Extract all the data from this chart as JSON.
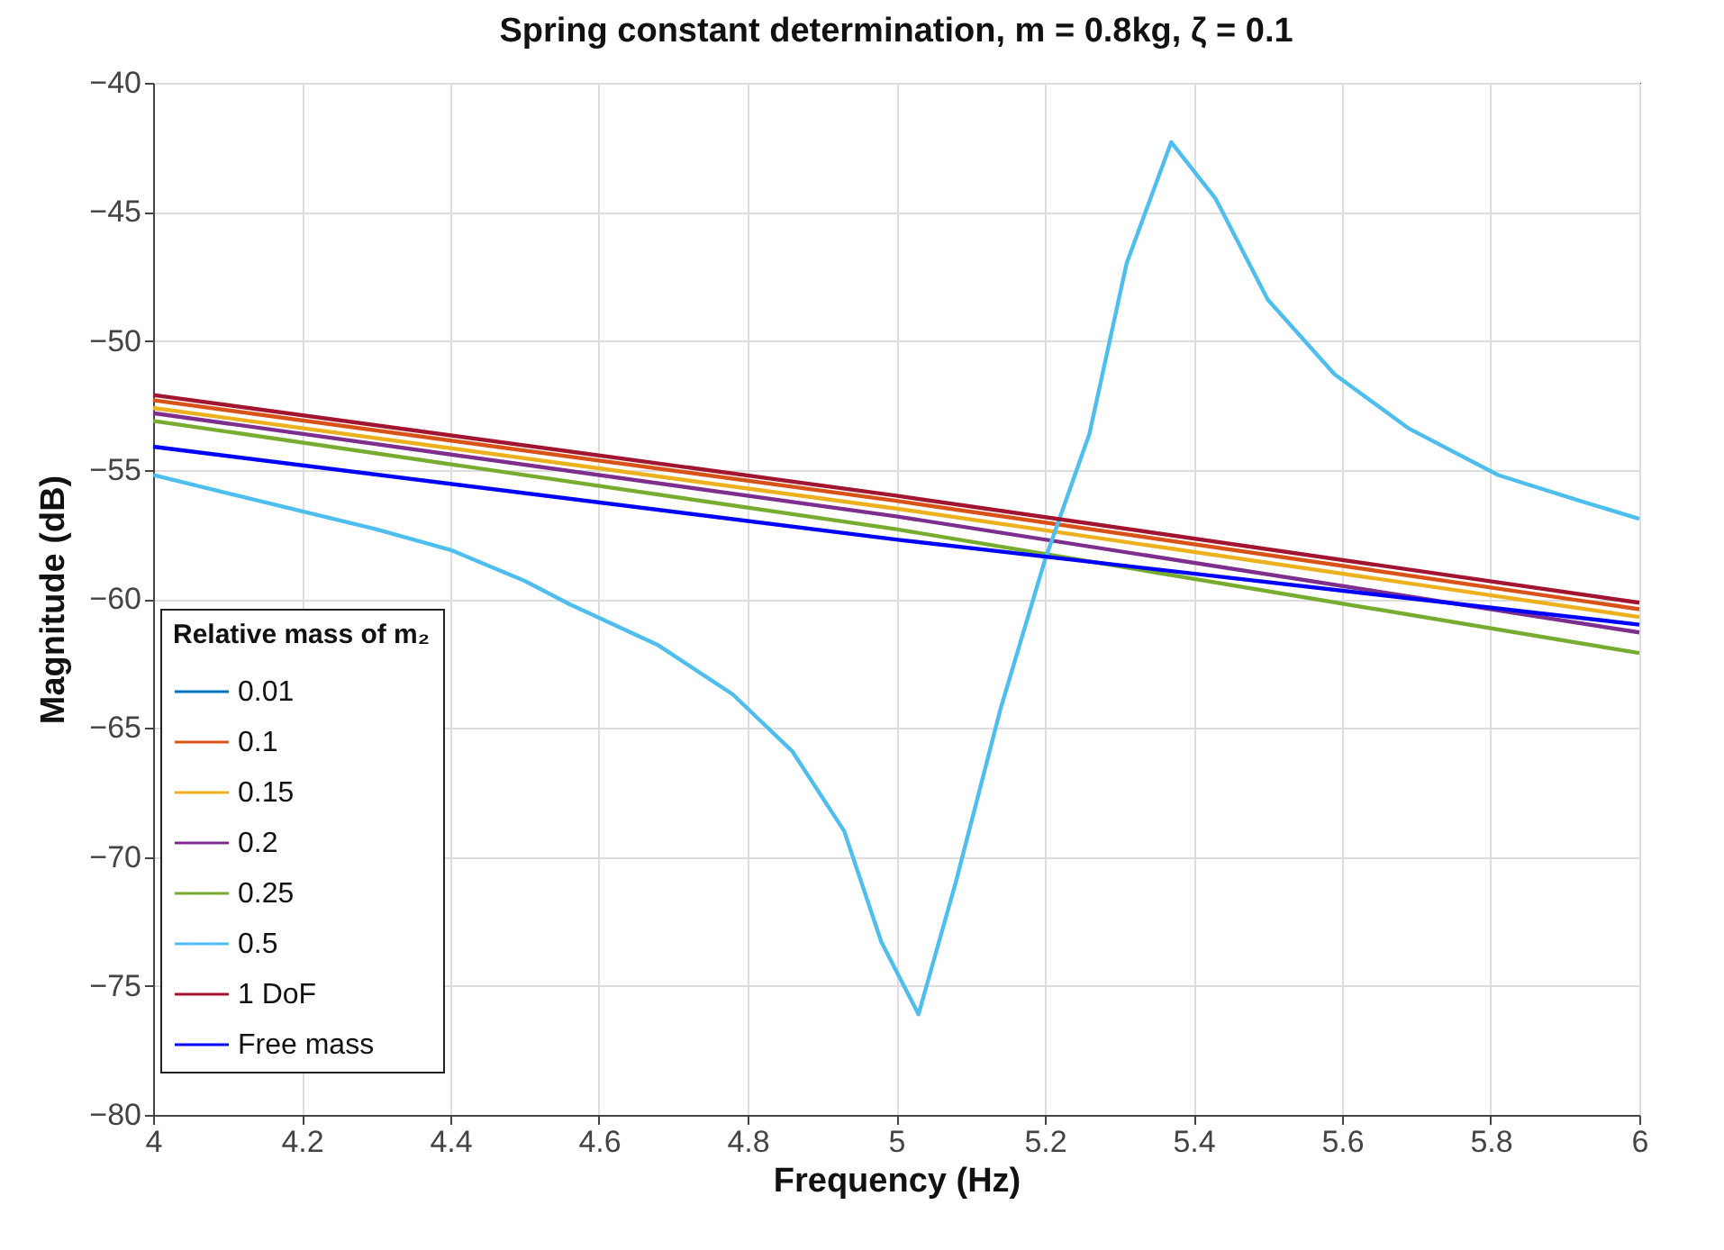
{
  "chart_data": {
    "type": "line",
    "title": "Spring constant determination, m = 0.8kg, ζ = 0.1",
    "xlabel": "Frequency  (Hz)",
    "ylabel": "Magnitude (dB)",
    "legend_title": "Relative mass of m₂",
    "xlim": [
      4,
      6
    ],
    "xticks": [
      4,
      4.2,
      4.4,
      4.6,
      4.8,
      5,
      5.2,
      5.4,
      5.6,
      5.8,
      6
    ],
    "ylim": [
      -80,
      -40
    ],
    "yticks": [
      -80,
      -75,
      -70,
      -65,
      -60,
      -55,
      -50,
      -45,
      -40
    ],
    "grid": true,
    "legend": "left",
    "marker": "none",
    "line_style": "solid",
    "series": [
      {
        "name": "0.01",
        "color": "#0072bd"
      },
      {
        "name": "0.1",
        "color": "#d95319",
        "x": [
          4,
          5,
          6
        ],
        "values": [
          -52.3,
          -56.2,
          -60.4
        ]
      },
      {
        "name": "0.15",
        "color": "#edb120",
        "x": [
          4,
          5,
          6
        ],
        "values": [
          -52.6,
          -56.5,
          -60.7
        ]
      },
      {
        "name": "0.2",
        "color": "#7e2f8e",
        "x": [
          4,
          5,
          6
        ],
        "values": [
          -52.8,
          -56.8,
          -61.3
        ]
      },
      {
        "name": "0.25",
        "color": "#77ac30",
        "x": [
          4,
          5,
          6
        ],
        "values": [
          -53.1,
          -57.3,
          -62.1
        ]
      },
      {
        "name": "0.5",
        "color": "#4dbeee",
        "x": [
          4,
          4.1,
          4.2,
          4.3,
          4.4,
          4.5,
          4.56,
          4.68,
          4.78,
          4.86,
          4.93,
          4.98,
          5.03,
          5.08,
          5.14,
          5.2,
          5.26,
          5.31,
          5.37,
          5.43,
          5.5,
          5.59,
          5.69,
          5.81,
          5.92,
          6
        ],
        "values": [
          -55.2,
          -55.9,
          -56.6,
          -57.3,
          -58.1,
          -59.3,
          -60.2,
          -61.8,
          -63.7,
          -65.9,
          -69.0,
          -73.3,
          -76.1,
          -71.0,
          -64.3,
          -58.5,
          -53.6,
          -47.0,
          -42.3,
          -44.5,
          -48.4,
          -51.3,
          -53.4,
          -55.2,
          -56.2,
          -56.9
        ]
      },
      {
        "name": "1 DoF",
        "color": "#a2142f",
        "x": [
          4,
          5,
          6
        ],
        "values": [
          -52.1,
          -56.0,
          -60.15
        ]
      },
      {
        "name": "Free mass",
        "color": "#0000ff",
        "x": [
          4,
          5,
          6
        ],
        "values": [
          -54.1,
          -57.7,
          -61.0
        ]
      }
    ]
  }
}
